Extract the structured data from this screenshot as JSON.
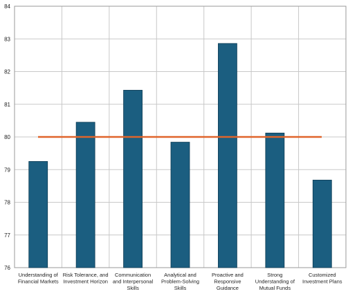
{
  "chart_data": {
    "type": "bar",
    "title": "",
    "xlabel": "",
    "ylabel": "",
    "ylim": [
      76,
      84
    ],
    "yticks": [
      76,
      77,
      78,
      79,
      80,
      81,
      82,
      83,
      84
    ],
    "grid": true,
    "categories": [
      "Understanding of Financial Markets",
      "Risk Tolerance, and Investment Horizon",
      "Communication and Interpersonal Skills",
      "Analytical and Problem-Solving Skills",
      "Proactive and Responsive Guidance",
      "Strong Understanding of Mutual Funds",
      "Customized Investment Plans"
    ],
    "category_label_lines": [
      [
        "Understanding of",
        "Financial Markets"
      ],
      [
        "Risk Tolerance, and",
        "Investment Horizon"
      ],
      [
        "Communication",
        "and Interpersonal",
        "Skills"
      ],
      [
        "Analytical and",
        "Problem-Solving",
        "Skills"
      ],
      [
        "Proactive and",
        "Responsive",
        "Guidance"
      ],
      [
        "Strong",
        "Understanding of",
        "Mutual Funds"
      ],
      [
        "Customized",
        "Investment Plans"
      ]
    ],
    "values": [
      79.25,
      80.45,
      81.43,
      79.84,
      82.86,
      80.12,
      78.68
    ],
    "reference_line": {
      "value": 80,
      "color": "#e0642a"
    },
    "bar_color": "#1b5e80",
    "bar_stroke": "#0f3d55"
  }
}
